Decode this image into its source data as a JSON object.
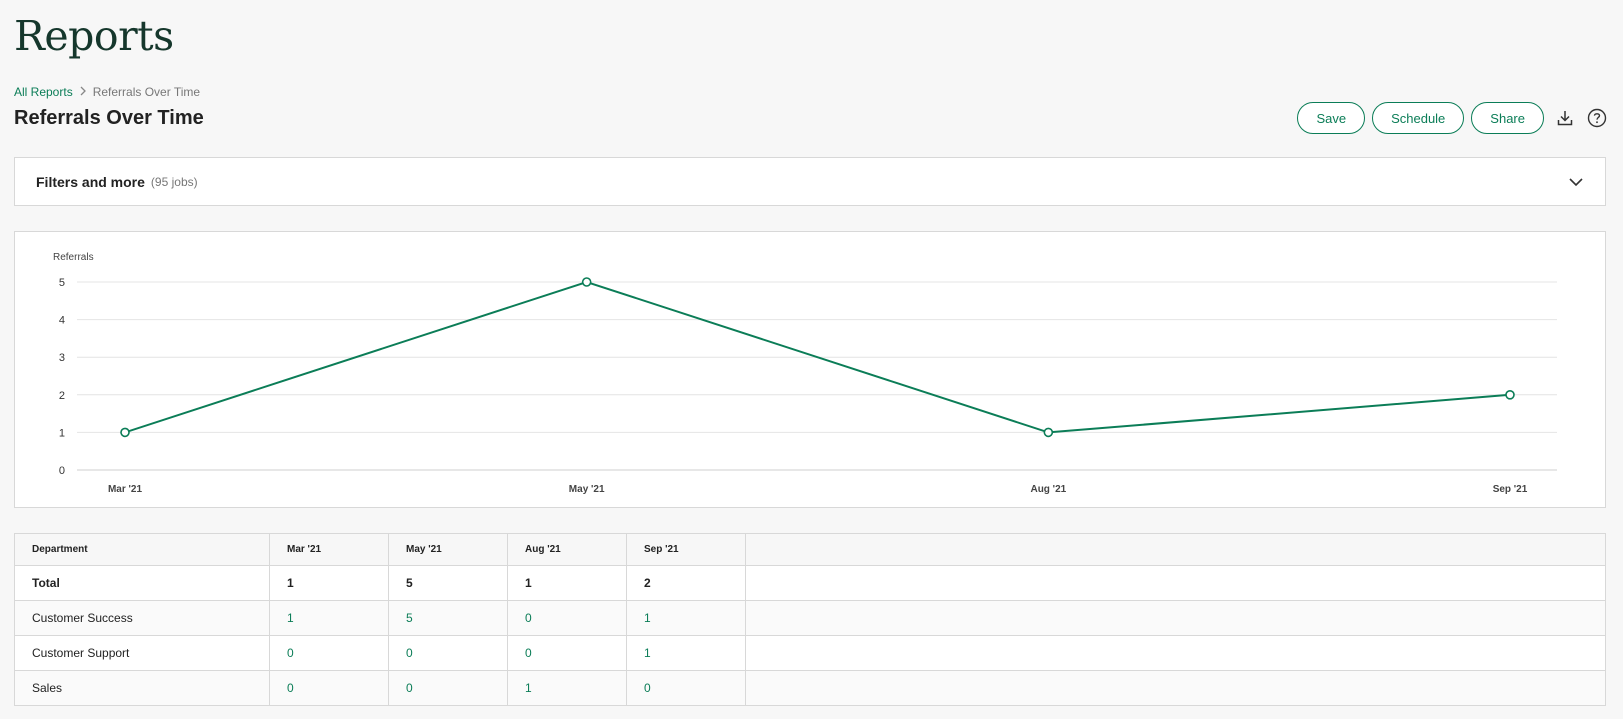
{
  "page": {
    "heading": "Reports"
  },
  "breadcrumb": {
    "root": "All Reports",
    "separator": "›",
    "current": "Referrals Over Time"
  },
  "report": {
    "title": "Referrals Over Time"
  },
  "actions": {
    "save": "Save",
    "schedule": "Schedule",
    "share": "Share",
    "download_icon": "download-icon",
    "help_icon": "help-icon"
  },
  "filters": {
    "title": "Filters and more",
    "count": "(95 jobs)",
    "chevron_icon": "chevron-down-icon"
  },
  "colors": {
    "accent": "#0b7d57",
    "heading": "#15372c",
    "grid": "#e4e4e4"
  },
  "chart_data": {
    "type": "line",
    "ylabel": "Referrals",
    "categories": [
      "Mar '21",
      "May '21",
      "Aug '21",
      "Sep '21"
    ],
    "series": [
      {
        "values": [
          1,
          5,
          1,
          2
        ]
      }
    ],
    "ylim": [
      0,
      5
    ],
    "yticks": [
      0,
      1,
      2,
      3,
      4,
      5
    ],
    "grid": true
  },
  "table": {
    "headers": [
      "Department",
      "Mar '21",
      "May '21",
      "Aug '21",
      "Sep '21"
    ],
    "rows": [
      {
        "label": "Total",
        "values": [
          "1",
          "5",
          "1",
          "2"
        ]
      },
      {
        "label": "Customer Success",
        "values": [
          "1",
          "5",
          "0",
          "1"
        ]
      },
      {
        "label": "Customer Support",
        "values": [
          "0",
          "0",
          "0",
          "1"
        ]
      },
      {
        "label": "Sales",
        "values": [
          "0",
          "0",
          "1",
          "0"
        ]
      }
    ]
  }
}
